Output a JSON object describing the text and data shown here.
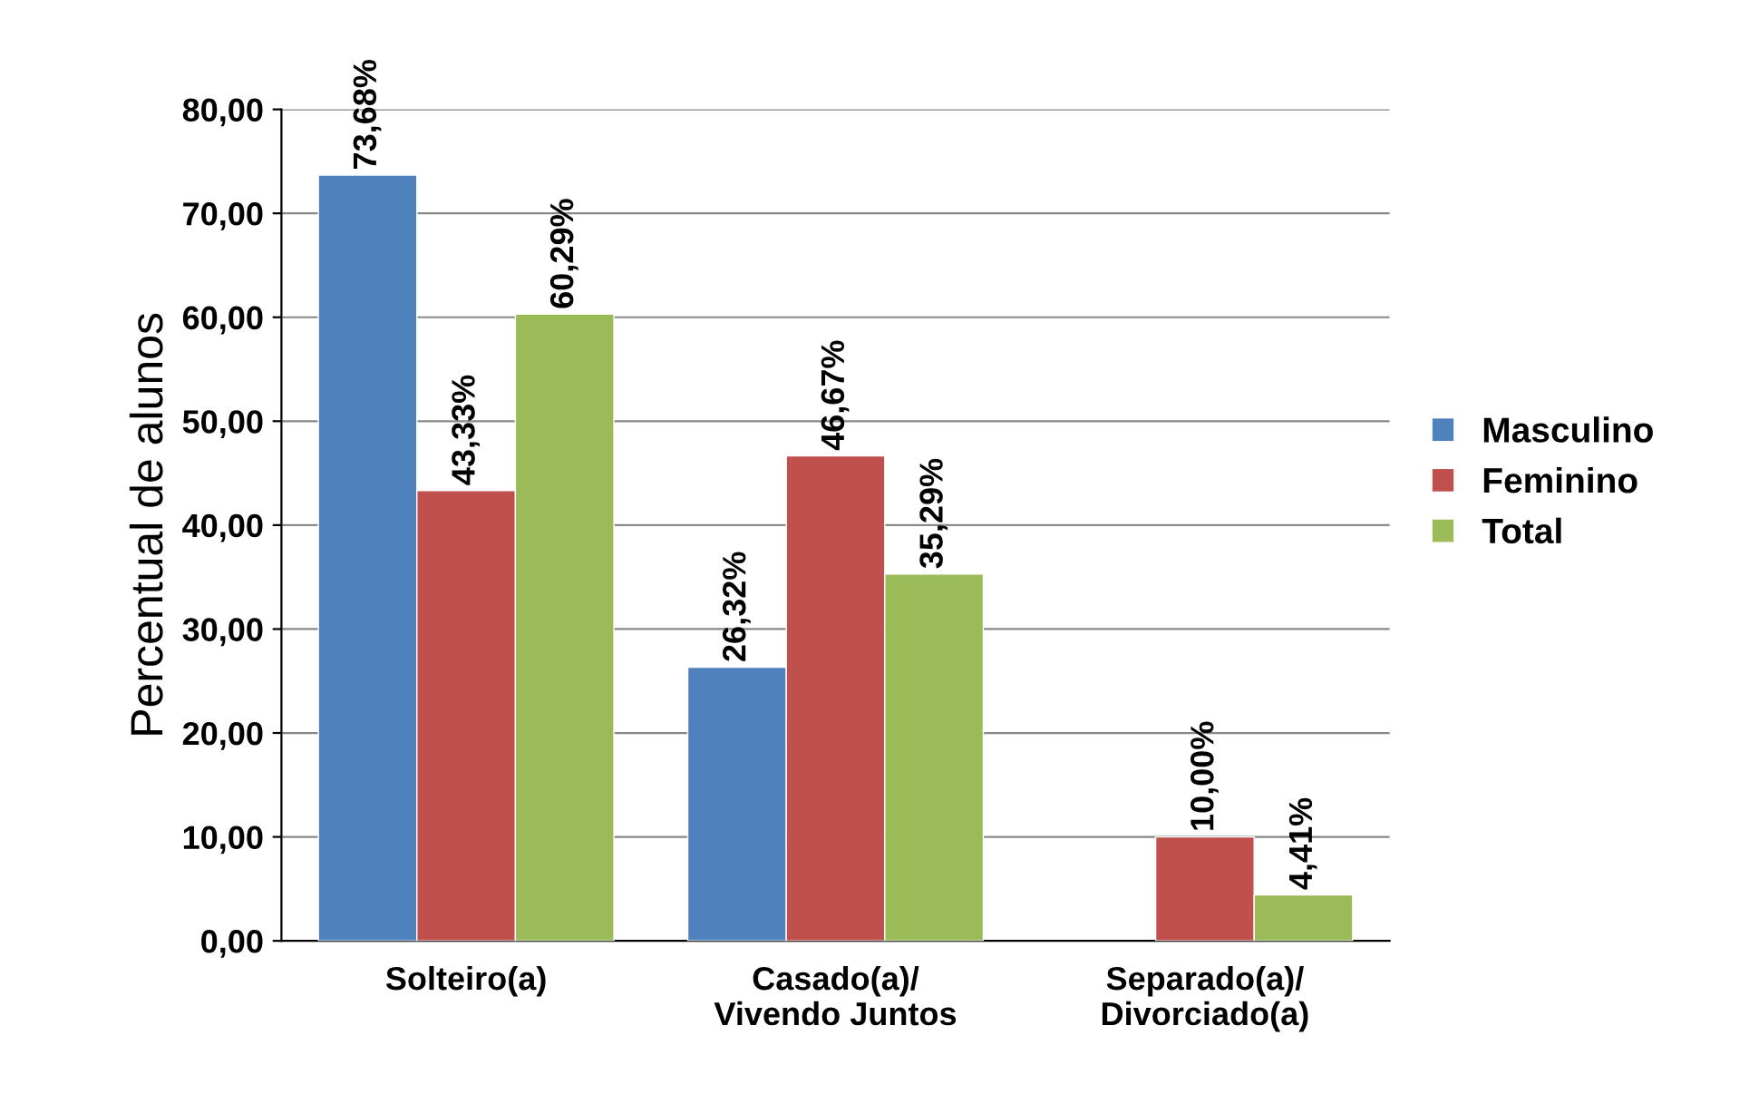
{
  "chart_data": {
    "type": "bar",
    "ylabel": "Percentual de alunos",
    "categories": [
      "Solteiro(a)",
      "Casado(a)/\nVivendo Juntos",
      "Separado(a)/\nDivorciado(a)"
    ],
    "series": [
      {
        "name": "Masculino",
        "color": "#4f81bd",
        "values": [
          73.68,
          26.32,
          null
        ],
        "value_labels": [
          "73,68%",
          "26,32%",
          null
        ]
      },
      {
        "name": "Feminino",
        "color": "#c0504d",
        "values": [
          43.33,
          46.67,
          10.0
        ],
        "value_labels": [
          "43,33%",
          "46,67%",
          "10,00%"
        ]
      },
      {
        "name": "Total",
        "color": "#9bbb59",
        "values": [
          60.29,
          35.29,
          4.41
        ],
        "value_labels": [
          "60,29%",
          "35,29%",
          "4,41%"
        ]
      }
    ],
    "ylim": [
      0,
      80
    ],
    "yticks": [
      {
        "value": 0,
        "label": "0,00"
      },
      {
        "value": 10,
        "label": "10,00"
      },
      {
        "value": 20,
        "label": "20,00"
      },
      {
        "value": 30,
        "label": "30,00"
      },
      {
        "value": 40,
        "label": "40,00"
      },
      {
        "value": 50,
        "label": "50,00"
      },
      {
        "value": 60,
        "label": "60,00"
      },
      {
        "value": 70,
        "label": "70,00"
      },
      {
        "value": 80,
        "label": "80,00"
      }
    ],
    "grid": "y",
    "legend": "right"
  }
}
